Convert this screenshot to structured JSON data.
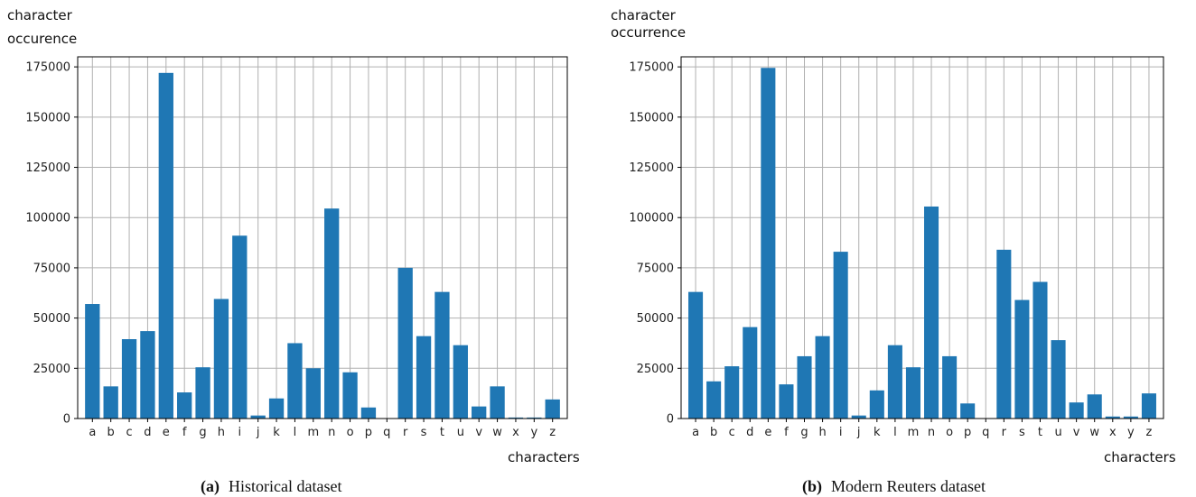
{
  "chart_data": [
    {
      "type": "bar",
      "ylabel_lines": [
        "character",
        "occurence"
      ],
      "xlabel": "characters",
      "caption_tag": "(a)",
      "caption_text": "Historical dataset",
      "ylim": [
        0,
        180000
      ],
      "yticks": [
        "0",
        "25000",
        "50000",
        "75000",
        "100000",
        "125000",
        "150000",
        "175000"
      ],
      "grid": true,
      "bar_color": "#1f77b4",
      "categories": [
        "a",
        "b",
        "c",
        "d",
        "e",
        "f",
        "g",
        "h",
        "i",
        "j",
        "k",
        "l",
        "m",
        "n",
        "o",
        "p",
        "q",
        "r",
        "s",
        "t",
        "u",
        "v",
        "w",
        "x",
        "y",
        "z"
      ],
      "values": [
        57000,
        16000,
        39500,
        43500,
        172000,
        13000,
        25500,
        59500,
        91000,
        1500,
        10000,
        37500,
        25000,
        104500,
        23000,
        5500,
        0,
        75000,
        41000,
        63000,
        36500,
        6000,
        16000,
        500,
        500,
        9500
      ]
    },
    {
      "type": "bar",
      "ylabel_lines": [
        "character",
        "occurrence"
      ],
      "xlabel": "characters",
      "caption_tag": "(b)",
      "caption_text": "Modern Reuters dataset",
      "ylim": [
        0,
        180000
      ],
      "yticks": [
        "0",
        "25000",
        "50000",
        "75000",
        "100000",
        "125000",
        "150000",
        "175000"
      ],
      "grid": true,
      "bar_color": "#1f77b4",
      "categories": [
        "a",
        "b",
        "c",
        "d",
        "e",
        "f",
        "g",
        "h",
        "i",
        "j",
        "k",
        "l",
        "m",
        "n",
        "o",
        "p",
        "q",
        "r",
        "s",
        "t",
        "u",
        "v",
        "w",
        "x",
        "y",
        "z"
      ],
      "values": [
        63000,
        18500,
        26000,
        45500,
        174500,
        17000,
        31000,
        41000,
        83000,
        1500,
        14000,
        36500,
        25500,
        105500,
        31000,
        7500,
        0,
        84000,
        59000,
        68000,
        39000,
        8000,
        12000,
        1000,
        1000,
        12500
      ]
    }
  ]
}
